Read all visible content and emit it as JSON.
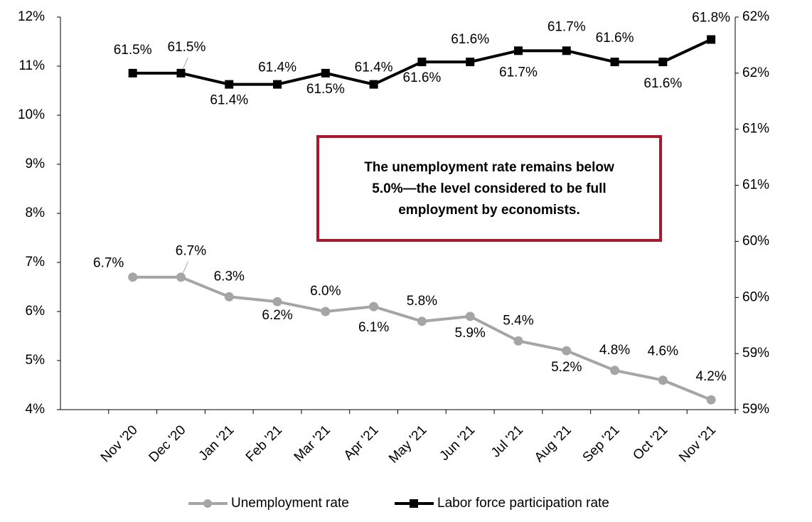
{
  "chart_data": {
    "type": "line",
    "categories": [
      "Nov '20",
      "Dec '20",
      "Jan '21",
      "Feb '21",
      "Mar '21",
      "Apr '21",
      "May '21",
      "Jun '21",
      "Jul '21",
      "Aug '21",
      "Sep '21",
      "Oct '21",
      "Nov '21"
    ],
    "series": [
      {
        "name": "Unemployment rate",
        "color": "#a5a5a5",
        "marker": "circle",
        "values": [
          6.7,
          6.7,
          6.3,
          6.2,
          6.0,
          6.1,
          5.8,
          5.9,
          5.4,
          5.2,
          4.8,
          4.6,
          4.2
        ],
        "value_labels": [
          "6.7%",
          "6.7%",
          "6.3%",
          "6.2%",
          "6.0%",
          "6.1%",
          "5.8%",
          "5.9%",
          "5.4%",
          "5.2%",
          "4.8%",
          "4.6%",
          "4.2%"
        ]
      },
      {
        "name": "Labor force participation rate",
        "color": "#000000",
        "marker": "square",
        "axis": "y2",
        "values": [
          61.5,
          61.5,
          61.4,
          61.4,
          61.5,
          61.4,
          61.6,
          61.6,
          61.7,
          61.7,
          61.6,
          61.6,
          61.8
        ],
        "value_labels": [
          "61.5%",
          "61.5%",
          "61.4%",
          "61.4%",
          "61.5%",
          "61.4%",
          "61.6%",
          "61.6%",
          "61.7%",
          "61.7%",
          "61.6%",
          "61.6%",
          "61.8%"
        ]
      }
    ],
    "ylim": [
      4,
      12
    ],
    "yticks": [
      {
        "value": 4,
        "label": "4%"
      },
      {
        "value": 5,
        "label": "5%"
      },
      {
        "value": 6,
        "label": "6%"
      },
      {
        "value": 7,
        "label": "7%"
      },
      {
        "value": 8,
        "label": "8%"
      },
      {
        "value": 9,
        "label": "9%"
      },
      {
        "value": 10,
        "label": "10%"
      },
      {
        "value": 11,
        "label": "11%"
      },
      {
        "value": 12,
        "label": "12%"
      }
    ],
    "y2lim": [
      58.5,
      62.0
    ],
    "y2ticks": [
      {
        "value": 58.5,
        "label": "59%"
      },
      {
        "value": 59.0,
        "label": "59%"
      },
      {
        "value": 59.5,
        "label": "60%"
      },
      {
        "value": 60.0,
        "label": "60%"
      },
      {
        "value": 60.5,
        "label": "61%"
      },
      {
        "value": 61.0,
        "label": "61%"
      },
      {
        "value": 61.5,
        "label": "62%"
      },
      {
        "value": 62.0,
        "label": "62%"
      }
    ],
    "grid": false,
    "legend": "bottom",
    "annotation": {
      "lines": [
        "The unemployment rate remains below",
        "5.0%—the level considered to be full",
        "employment by economists."
      ],
      "border_color": "#a6192e"
    }
  }
}
